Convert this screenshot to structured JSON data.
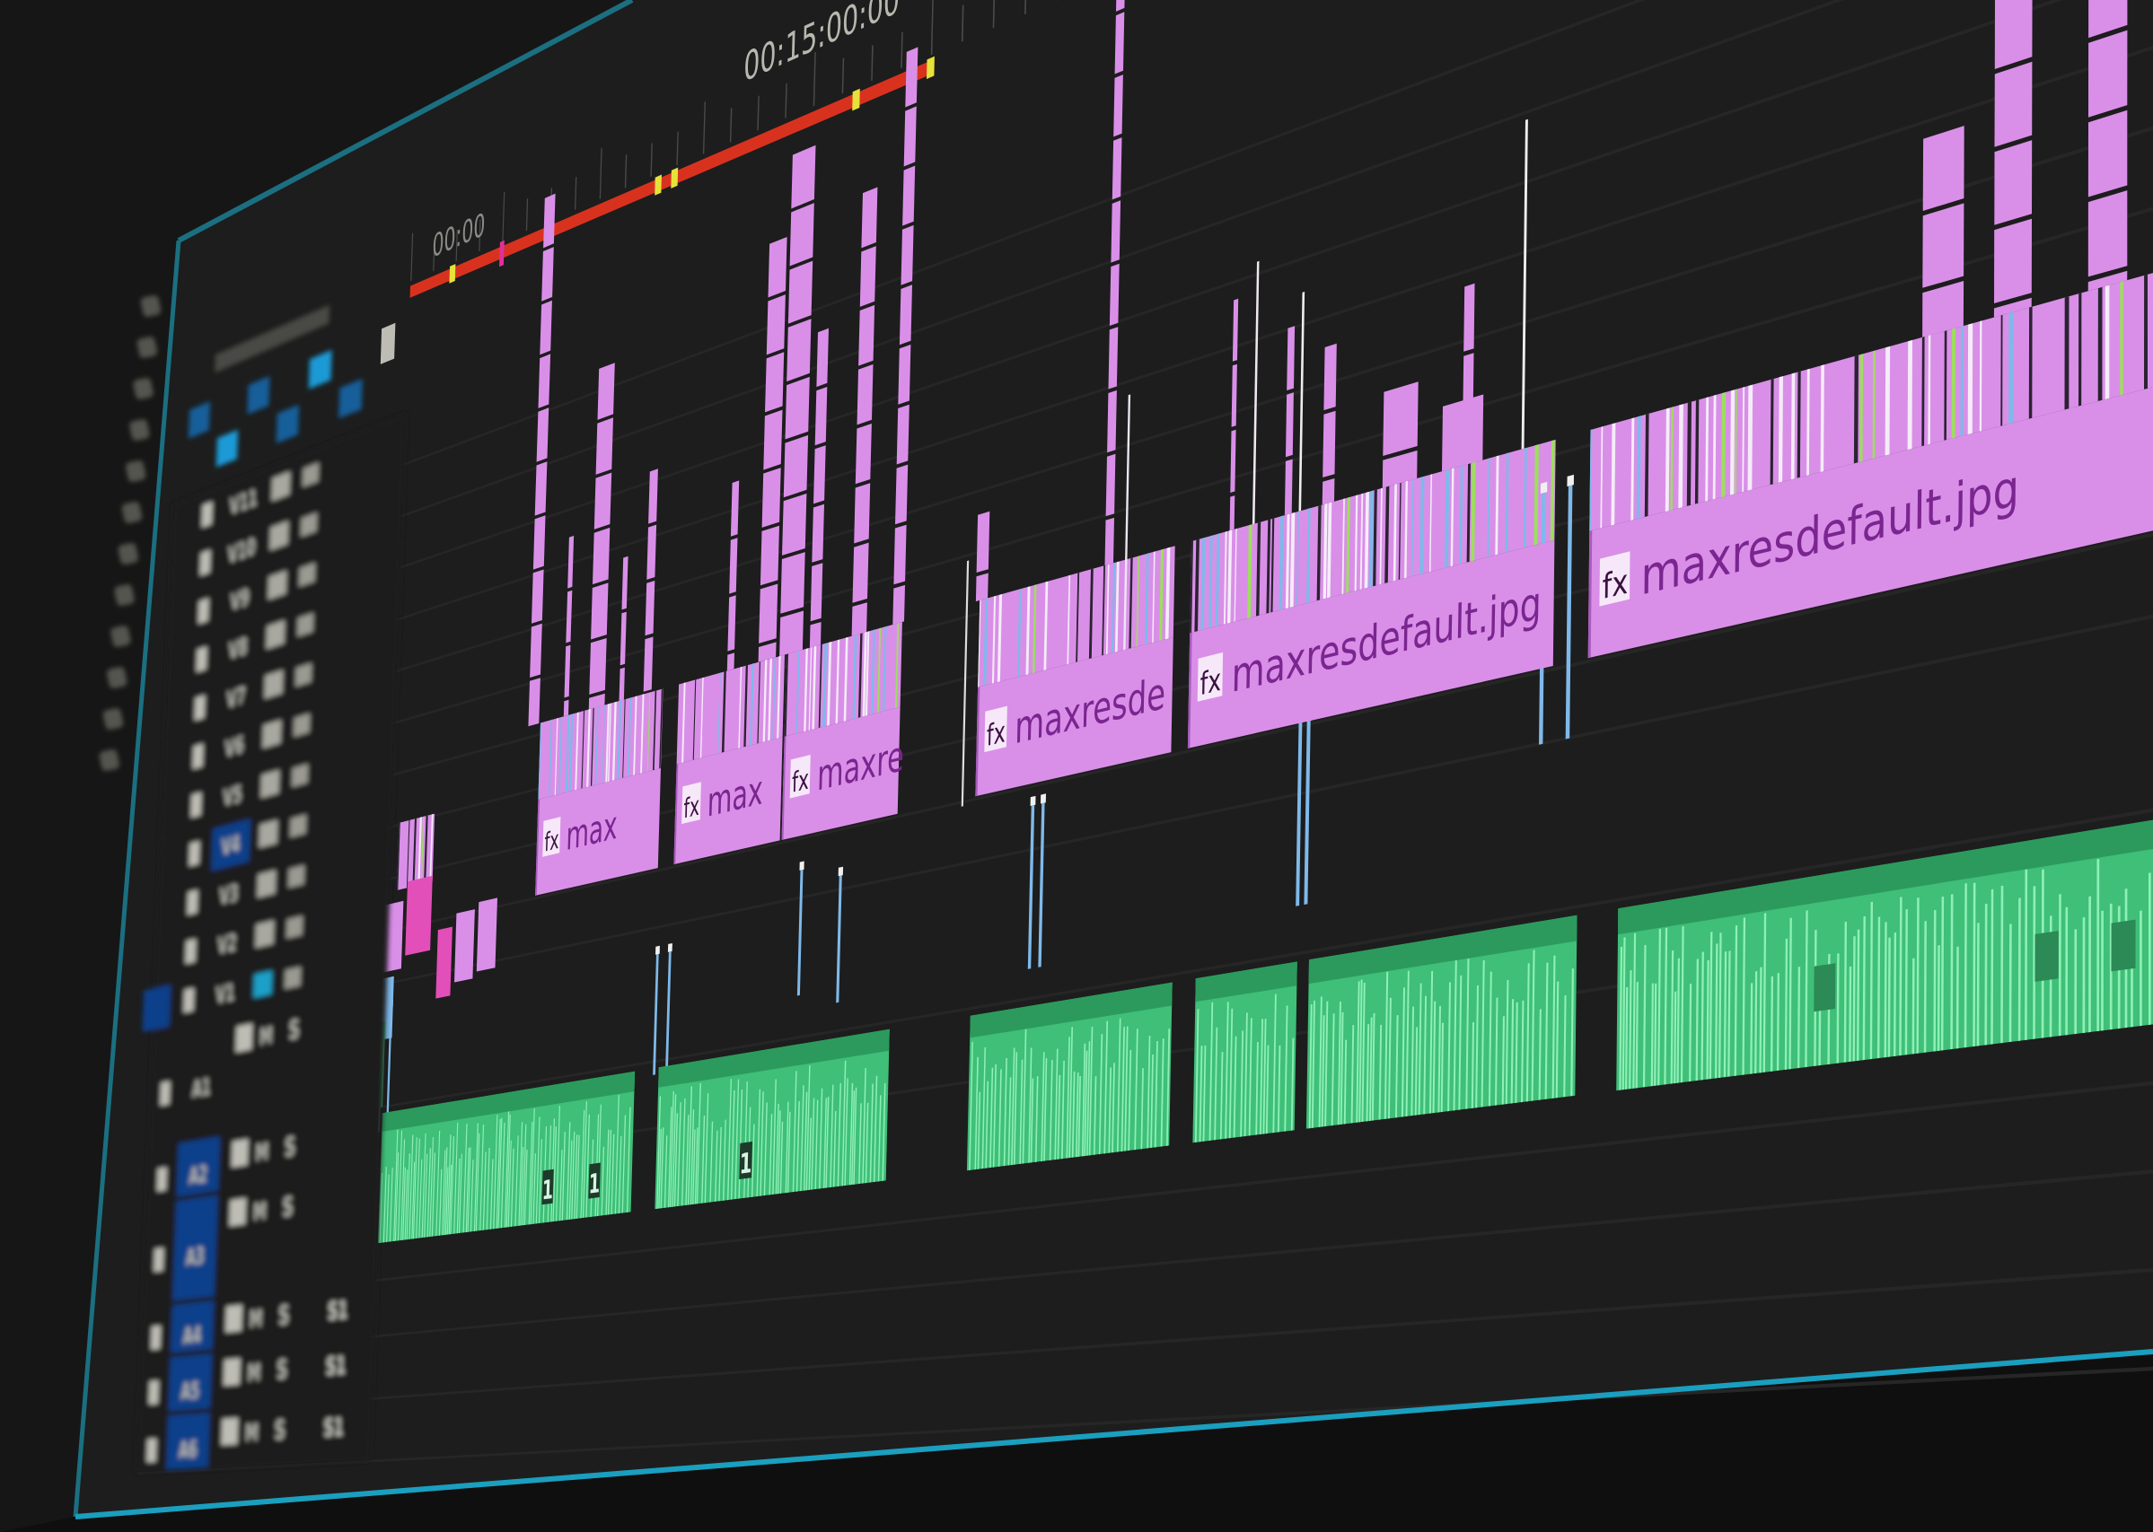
{
  "app": "Premiere-style video editing timeline (photographed screen)",
  "ruler": {
    "start_timecode": "00:00",
    "marker_timecode": "00:15:00:00"
  },
  "video_tracks": [
    {
      "label": "V11"
    },
    {
      "label": "V10"
    },
    {
      "label": "V9"
    },
    {
      "label": "V8"
    },
    {
      "label": "V7"
    },
    {
      "label": "V6"
    },
    {
      "label": "V5"
    },
    {
      "label": "V4"
    },
    {
      "label": "V3"
    },
    {
      "label": "V2"
    },
    {
      "label": "V1"
    }
  ],
  "highlighted_video_track": "V4",
  "source_patch_video": "V1",
  "audio_tracks": [
    {
      "label": "A1",
      "mute": "M",
      "solo": "S",
      "extra": ""
    },
    {
      "label": "A2",
      "mute": "M",
      "solo": "S",
      "extra": ""
    },
    {
      "label": "A3",
      "mute": "M",
      "solo": "S",
      "extra": ""
    },
    {
      "label": "A4",
      "mute": "M",
      "solo": "S",
      "extra": "S1"
    },
    {
      "label": "A5",
      "mute": "M",
      "solo": "S",
      "extra": "S1"
    },
    {
      "label": "A6",
      "mute": "M",
      "solo": "S",
      "extra": "S1"
    }
  ],
  "video_clips": [
    {
      "name": "max",
      "fx": "fx"
    },
    {
      "name": "max",
      "fx": "fx"
    },
    {
      "name": "maxre",
      "fx": "fx"
    },
    {
      "name": "maxresde",
      "fx": "fx"
    },
    {
      "name": "maxresdefault.jpg",
      "fx": "fx"
    },
    {
      "name": "maxresdefault.jpg",
      "fx": "fx"
    }
  ],
  "audio_badges": [
    "1",
    "1",
    "1"
  ],
  "tools": [
    "selection-tool-icon",
    "track-select-tool-icon",
    "ripple-edit-tool-icon",
    "rolling-edit-tool-icon",
    "rate-stretch-tool-icon",
    "razor-tool-icon",
    "slip-tool-icon",
    "slide-tool-icon",
    "pen-tool-icon",
    "hand-tool-icon",
    "type-tool-icon",
    "zoom-tool-icon"
  ],
  "colors": {
    "background": "#1d1d1d",
    "video_clip": "#d98fe8",
    "video_clip_dark": "#a85bbd",
    "clip_label": "#7b2590",
    "audio_clip": "#3fbf78",
    "audio_wave": "#8ef0b6",
    "marker_blue": "#7fb9ea",
    "work_area": "#d8321f",
    "marker_yellow": "#e6e23a",
    "frame_teal": "#1a9fbf",
    "track_patch_blue": "#0d3f8a"
  }
}
